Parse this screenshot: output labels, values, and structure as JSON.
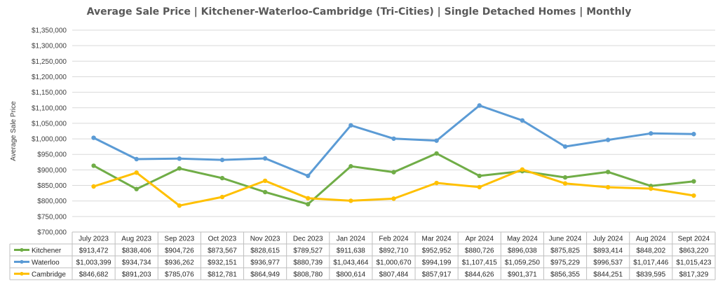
{
  "chart_data": {
    "type": "line",
    "title": "Average Sale Price | Kitchener-Waterloo-Cambridge (Tri-Cities) | Single Detached Homes | Monthly",
    "ylabel": "Average Sale Price",
    "xlabel": "",
    "ylim": [
      700000,
      1350000
    ],
    "ytick_step": 50000,
    "ytick_labels": [
      "$700,000",
      "$750,000",
      "$800,000",
      "$850,000",
      "$900,000",
      "$950,000",
      "$1,000,000",
      "$1,050,000",
      "$1,100,000",
      "$1,150,000",
      "$1,200,000",
      "$1,250,000",
      "$1,300,000",
      "$1,350,000"
    ],
    "grid": true,
    "legend": "data-table-bottom",
    "categories": [
      "July 2023",
      "Aug 2023",
      "Sep 2023",
      "Oct 2023",
      "Nov 2023",
      "Dec 2023",
      "Jan 2024",
      "Feb 2024",
      "Mar 2024",
      "Apr 2024",
      "May 2024",
      "June 2024",
      "July 2024",
      "Aug 2024",
      "Sept 2024"
    ],
    "series": [
      {
        "name": "Kitchener",
        "color": "#70ad47",
        "values": [
          913472,
          838406,
          904726,
          873567,
          828615,
          789527,
          911638,
          892710,
          952952,
          880726,
          896038,
          875825,
          893414,
          848202,
          863220
        ],
        "labels": [
          "$913,472",
          "$838,406",
          "$904,726",
          "$873,567",
          "$828,615",
          "$789,527",
          "$911,638",
          "$892,710",
          "$952,952",
          "$880,726",
          "$896,038",
          "$875,825",
          "$893,414",
          "$848,202",
          "$863,220"
        ]
      },
      {
        "name": "Waterloo",
        "color": "#5b9bd5",
        "values": [
          1003399,
          934734,
          936262,
          932151,
          936977,
          880739,
          1043464,
          1000670,
          994199,
          1107415,
          1059250,
          975229,
          996537,
          1017446,
          1015423
        ],
        "labels": [
          "$1,003,399",
          "$934,734",
          "$936,262",
          "$932,151",
          "$936,977",
          "$880,739",
          "$1,043,464",
          "$1,000,670",
          "$994,199",
          "$1,107,415",
          "$1,059,250",
          "$975,229",
          "$996,537",
          "$1,017,446",
          "$1,015,423"
        ]
      },
      {
        "name": "Cambridge",
        "color": "#ffc000",
        "values": [
          846682,
          891203,
          785076,
          812781,
          864949,
          808780,
          800614,
          807484,
          857917,
          844626,
          901371,
          856355,
          844251,
          839595,
          817329
        ],
        "labels": [
          "$846,682",
          "$891,203",
          "$785,076",
          "$812,781",
          "$864,949",
          "$808,780",
          "$800,614",
          "$807,484",
          "$857,917",
          "$844,626",
          "$901,371",
          "$856,355",
          "$844,251",
          "$839,595",
          "$817,329"
        ]
      }
    ]
  }
}
